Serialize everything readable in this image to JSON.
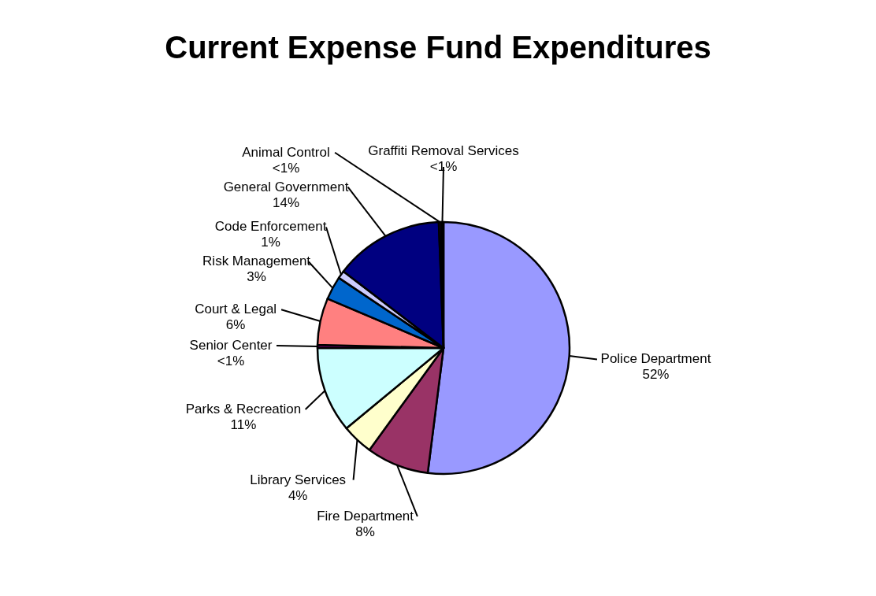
{
  "chart_data": {
    "type": "pie",
    "title": "Current Expense Fund Expenditures",
    "categories": [
      "Police Department",
      "Fire Department",
      "Library Services",
      "Parks & Recreation",
      "Senior Center",
      "Court & Legal",
      "Risk Management",
      "Code Enforcement",
      "General Government",
      "Animal Control",
      "Graffiti Removal Services"
    ],
    "values": [
      52,
      8,
      4,
      11,
      0.4,
      6,
      3,
      1,
      14,
      0.3,
      0.3
    ],
    "value_labels": [
      "52%",
      "8%",
      "4%",
      "11%",
      "<1%",
      "6%",
      "3%",
      "1%",
      "14%",
      "<1%",
      "<1%"
    ],
    "colors": [
      "#9999ff",
      "#993366",
      "#ffffcc",
      "#ccffff",
      "#660066",
      "#ff8080",
      "#0066cc",
      "#ccccff",
      "#000080",
      "#330033",
      "#000000"
    ]
  }
}
